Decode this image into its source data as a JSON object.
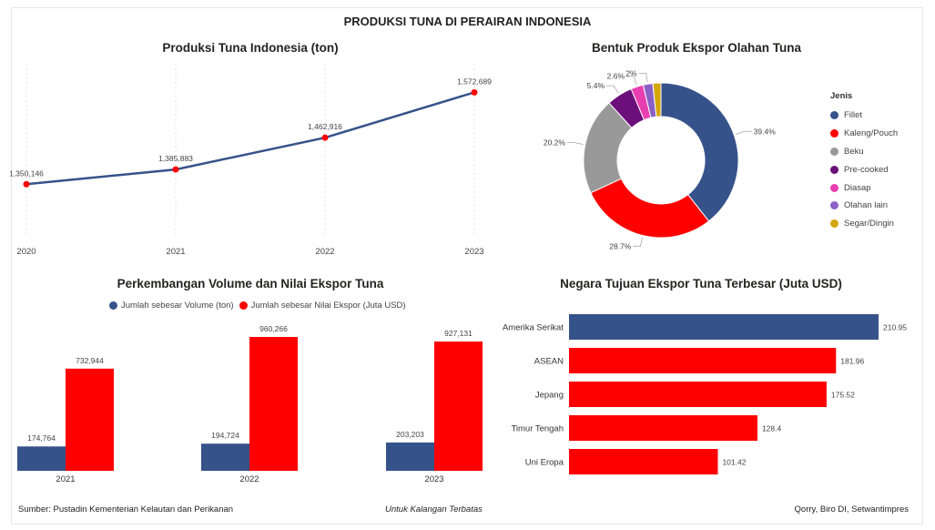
{
  "header": {
    "title": "PRODUKSI TUNA DI PERAIRAN INDONESIA"
  },
  "footer": {
    "source": "Sumber: Pustadin Kementerian Kelautan dan Perikanan",
    "restricted": "Untuk Kalangan Terbatas",
    "credit": "Qorry, Biro DI, Setwantimpres"
  },
  "colors": {
    "blue": "#36528a",
    "red": "#ff0000",
    "line": "#36528a"
  },
  "chart_data": [
    {
      "type": "line",
      "title": "Produksi Tuna Indonesia (ton)",
      "categories": [
        "2020",
        "2021",
        "2022",
        "2023"
      ],
      "values": [
        1350146,
        1385883,
        1462916,
        1572689
      ],
      "labels": [
        "1,350,146",
        "1,385,883",
        "1,462,916",
        "1,572,689"
      ],
      "xlabel": "",
      "ylabel": ""
    },
    {
      "type": "pie",
      "title": "Bentuk Produk Ekspor Olahan Tuna",
      "legend_title": "Jenis",
      "categories": [
        "Fillet",
        "Kaleng/Pouch",
        "Beku",
        "Pre-cooked",
        "Diasap",
        "Olahan lain",
        "Segar/Dingin"
      ],
      "values": [
        39.4,
        28.7,
        20.2,
        5.4,
        2.6,
        2.0,
        1.7
      ],
      "labels": [
        "39.4%",
        "28.7%",
        "20.2%",
        "5.4%",
        "2.6%",
        "2%",
        ""
      ],
      "colors": [
        "#36528a",
        "#ff0000",
        "#999999",
        "#6b0f7a",
        "#e83fb0",
        "#8a5fc6",
        "#d4a60a"
      ]
    },
    {
      "type": "bar",
      "title": "Perkembangan Volume dan Nilai Ekspor Tuna",
      "categories": [
        "2021",
        "2022",
        "2023"
      ],
      "series": [
        {
          "name": "Jumlah sebesar Volume (ton)",
          "values": [
            174764,
            194724,
            203203
          ],
          "labels": [
            "174,764",
            "194,724",
            "203,203"
          ]
        },
        {
          "name": "Jumlah sebesar Nilai Ekspor (Juta USD)",
          "values": [
            732944,
            960266,
            927131
          ],
          "labels": [
            "732,944",
            "960,266",
            "927,131"
          ]
        }
      ]
    },
    {
      "type": "bar",
      "orientation": "horizontal",
      "title": "Negara Tujuan Ekspor Tuna Terbesar (Juta USD)",
      "categories": [
        "Amerika Serikat",
        "ASEAN",
        "Jepang",
        "Timur Tengah",
        "Uni Eropa"
      ],
      "values": [
        210.95,
        181.96,
        175.52,
        128.4,
        101.42
      ],
      "labels": [
        "210.95",
        "181.96",
        "175.52",
        "128.4",
        "101.42"
      ]
    }
  ]
}
